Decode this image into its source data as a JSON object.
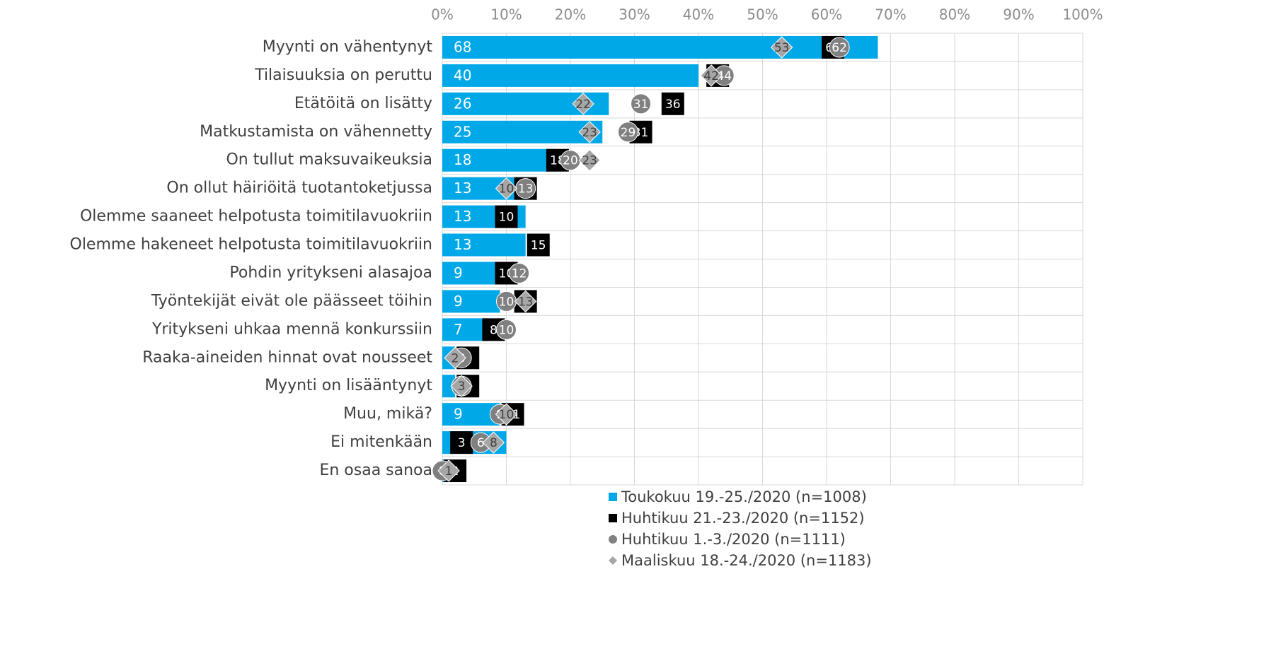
{
  "chart_data": {
    "type": "bar",
    "orientation": "horizontal",
    "categories": [
      "Myynti on vähentynyt",
      "Tilaisuuksia on peruttu",
      "Etätöitä on lisätty",
      "Matkustamista on vähennetty",
      "On tullut maksuvaikeuksia",
      "On ollut häiriöitä tuotantoketjussa",
      "Olemme saaneet helpotusta toimitilavuokriin",
      "Olemme hakeneet helpotusta toimitilavuokriin",
      "Pohdin yritykseni alasajoa",
      "Työntekijät eivät ole päässeet töihin",
      "Yritykseni uhkaa mennä konkurssiin",
      "Raaka-aineiden hinnat ovat nousseet",
      "Myynti on lisääntynyt",
      "Muu, mikä?",
      "Ei mitenkään",
      "En osaa sanoa"
    ],
    "series": [
      {
        "name": "Toukokuu 19.-25./2020 (n=1008)",
        "color": "#00a8e8",
        "marker": "bar",
        "values": [
          68,
          40,
          26,
          25,
          18,
          13,
          13,
          13,
          9,
          9,
          7,
          2,
          2,
          9,
          10,
          1
        ]
      },
      {
        "name": "Huhtikuu 21.-23./2020 (n=1152)",
        "color": "#000000",
        "marker": "square",
        "values": [
          61,
          43,
          36,
          31,
          18,
          13,
          10,
          15,
          10,
          13,
          8,
          4,
          4,
          11,
          3,
          2
        ]
      },
      {
        "name": "Huhtikuu 1.-3./2020 (n=1111)",
        "color": "#808080",
        "marker": "circle",
        "values": [
          62,
          44,
          31,
          29,
          20,
          13,
          null,
          null,
          12,
          10,
          10,
          3,
          3,
          9,
          6,
          0
        ]
      },
      {
        "name": "Maaliskuu 18.-24./2020 (n=1183)",
        "color": "#a6a6a6",
        "marker": "diamond",
        "values": [
          53,
          42,
          22,
          23,
          23,
          10,
          null,
          null,
          null,
          13,
          null,
          2,
          3,
          10,
          8,
          1
        ]
      }
    ],
    "xlim": [
      0,
      100
    ],
    "xticks": [
      {
        "value": 0,
        "label": "0%"
      },
      {
        "value": 10,
        "label": "10%"
      },
      {
        "value": 20,
        "label": "20%"
      },
      {
        "value": 30,
        "label": "30%"
      },
      {
        "value": 40,
        "label": "40%"
      },
      {
        "value": 50,
        "label": "50%"
      },
      {
        "value": 60,
        "label": "60%"
      },
      {
        "value": 70,
        "label": "70%"
      },
      {
        "value": 80,
        "label": "80%"
      },
      {
        "value": 90,
        "label": "90%"
      },
      {
        "value": 100,
        "label": "100%"
      }
    ],
    "grid": true,
    "legend": "bottom"
  }
}
